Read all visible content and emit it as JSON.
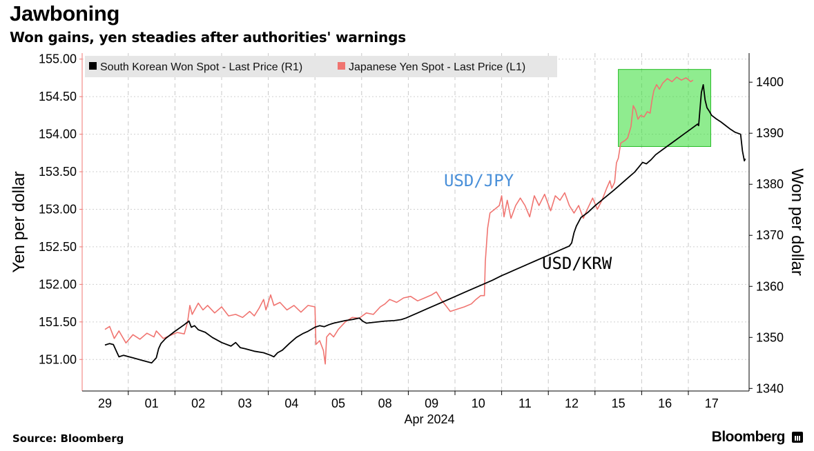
{
  "header": {
    "title": "Jawboning",
    "subtitle": "Won gains, yen steadies after authorities' warnings"
  },
  "footer": {
    "source": "Source: Bloomberg",
    "brand": "Bloomberg"
  },
  "chart_data": {
    "type": "line",
    "title": "Jawboning",
    "subtitle": "Won gains, yen steadies after authorities' warnings",
    "xlabel": "Apr 2024",
    "x_ticks": [
      "29",
      "01",
      "02",
      "03",
      "04",
      "05",
      "08",
      "09",
      "10",
      "11",
      "12",
      "15",
      "16",
      "17"
    ],
    "y_left": {
      "label": "Yen per dollar",
      "range": [
        150.58,
        155.08
      ],
      "ticks": [
        "151.00",
        "151.50",
        "152.00",
        "152.50",
        "153.00",
        "153.50",
        "154.00",
        "154.50",
        "155.00"
      ]
    },
    "y_right": {
      "label": "Won per dollar",
      "range": [
        1339.5,
        1405.7
      ],
      "ticks": [
        "1340",
        "1350",
        "1360",
        "1370",
        "1380",
        "1390",
        "1400"
      ]
    },
    "legend": [
      {
        "label": "South Korean Won Spot - Last Price (R1)",
        "color": "#000000"
      },
      {
        "label": "Japanese Yen Spot - Last Price (L1)",
        "color": "#f07470"
      }
    ],
    "annotations": [
      {
        "text": "USD/JPY",
        "color": "#4a90d9"
      },
      {
        "text": "USD/KRW",
        "color": "#000000"
      }
    ],
    "highlight": {
      "x_range": [
        15.0,
        16.98
      ],
      "y_range_won": [
        1387.4,
        1402.5
      ],
      "color": "#33dd33"
    },
    "series": [
      {
        "name": "Japanese Yen Spot - Last Price (L1)",
        "axis": "left",
        "color": "#f07470",
        "points": [
          [
            0,
            151.4
          ],
          [
            0.1,
            151.44
          ],
          [
            0.2,
            151.28
          ],
          [
            0.3,
            151.38
          ],
          [
            0.45,
            151.22
          ],
          [
            0.6,
            151.33
          ],
          [
            0.75,
            151.27
          ],
          [
            0.9,
            151.35
          ],
          [
            1.05,
            151.3
          ],
          [
            1.1,
            151.38
          ],
          [
            1.25,
            151.28
          ],
          [
            1.4,
            151.32
          ],
          [
            1.55,
            151.36
          ],
          [
            1.7,
            151.34
          ],
          [
            1.77,
            151.5
          ],
          [
            1.82,
            151.72
          ],
          [
            1.87,
            151.6
          ],
          [
            2.0,
            151.75
          ],
          [
            2.1,
            151.66
          ],
          [
            2.2,
            151.72
          ],
          [
            2.35,
            151.62
          ],
          [
            2.5,
            151.7
          ],
          [
            2.65,
            151.58
          ],
          [
            2.8,
            151.6
          ],
          [
            2.95,
            151.56
          ],
          [
            3.1,
            151.64
          ],
          [
            3.2,
            151.58
          ],
          [
            3.3,
            151.68
          ],
          [
            3.4,
            151.8
          ],
          [
            3.45,
            151.66
          ],
          [
            3.55,
            151.86
          ],
          [
            3.62,
            151.72
          ],
          [
            3.75,
            151.76
          ],
          [
            3.9,
            151.66
          ],
          [
            4.05,
            151.72
          ],
          [
            4.2,
            151.63
          ],
          [
            4.35,
            151.72
          ],
          [
            4.5,
            151.7
          ],
          [
            4.52,
            151.2
          ],
          [
            4.6,
            151.25
          ],
          [
            4.68,
            151.12
          ],
          [
            4.72,
            150.94
          ],
          [
            4.75,
            151.3
          ],
          [
            4.82,
            151.35
          ],
          [
            4.9,
            151.3
          ],
          [
            5.0,
            151.4
          ],
          [
            5.15,
            151.5
          ],
          [
            5.3,
            151.56
          ],
          [
            5.45,
            151.55
          ],
          [
            5.6,
            151.62
          ],
          [
            5.75,
            151.6
          ],
          [
            5.9,
            151.7
          ],
          [
            6.0,
            151.74
          ],
          [
            6.1,
            151.8
          ],
          [
            6.25,
            151.76
          ],
          [
            6.4,
            151.82
          ],
          [
            6.55,
            151.84
          ],
          [
            6.7,
            151.78
          ],
          [
            6.85,
            151.82
          ],
          [
            7.0,
            151.86
          ],
          [
            7.1,
            151.9
          ],
          [
            7.2,
            151.8
          ],
          [
            7.3,
            151.72
          ],
          [
            7.4,
            151.64
          ],
          [
            7.55,
            151.67
          ],
          [
            7.7,
            151.7
          ],
          [
            7.85,
            151.74
          ],
          [
            7.95,
            151.8
          ],
          [
            8.05,
            151.85
          ],
          [
            8.13,
            151.85
          ],
          [
            8.15,
            152.3
          ],
          [
            8.2,
            152.75
          ],
          [
            8.25,
            152.95
          ],
          [
            8.35,
            153.0
          ],
          [
            8.45,
            153.05
          ],
          [
            8.5,
            153.18
          ],
          [
            8.55,
            152.9
          ],
          [
            8.62,
            153.12
          ],
          [
            8.7,
            152.88
          ],
          [
            8.8,
            153.05
          ],
          [
            8.9,
            153.15
          ],
          [
            9.0,
            153.05
          ],
          [
            9.1,
            152.9
          ],
          [
            9.2,
            153.18
          ],
          [
            9.3,
            153.05
          ],
          [
            9.42,
            153.2
          ],
          [
            9.55,
            152.98
          ],
          [
            9.65,
            153.18
          ],
          [
            9.75,
            153.12
          ],
          [
            9.85,
            153.22
          ],
          [
            9.95,
            153.05
          ],
          [
            10.05,
            152.95
          ],
          [
            10.15,
            153.05
          ],
          [
            10.25,
            152.88
          ],
          [
            10.35,
            153.02
          ],
          [
            10.45,
            153.15
          ],
          [
            10.55,
            153.0
          ],
          [
            10.65,
            153.12
          ],
          [
            10.75,
            153.28
          ],
          [
            10.82,
            153.38
          ],
          [
            10.86,
            153.28
          ],
          [
            10.92,
            153.36
          ],
          [
            10.96,
            153.62
          ],
          [
            11.0,
            153.68
          ],
          [
            11.05,
            153.88
          ],
          [
            11.1,
            153.9
          ],
          [
            11.15,
            153.92
          ],
          [
            11.2,
            153.95
          ],
          [
            11.27,
            154.1
          ],
          [
            11.32,
            154.38
          ],
          [
            11.37,
            154.32
          ],
          [
            11.42,
            154.2
          ],
          [
            11.48,
            154.25
          ],
          [
            11.55,
            154.23
          ],
          [
            11.62,
            154.3
          ],
          [
            11.68,
            154.28
          ],
          [
            11.72,
            154.45
          ],
          [
            11.76,
            154.58
          ],
          [
            11.82,
            154.66
          ],
          [
            11.88,
            154.6
          ],
          [
            11.95,
            154.68
          ],
          [
            12.05,
            154.74
          ],
          [
            12.15,
            154.7
          ],
          [
            12.25,
            154.76
          ],
          [
            12.35,
            154.72
          ],
          [
            12.45,
            154.75
          ],
          [
            12.55,
            154.7
          ],
          [
            12.6,
            154.72
          ]
        ]
      },
      {
        "name": "South Korean Won Spot - Last Price (R1)",
        "axis": "right",
        "color": "#000000",
        "points": [
          [
            0,
            1348.5
          ],
          [
            0.1,
            1348.8
          ],
          [
            0.18,
            1348.6
          ],
          [
            0.25,
            1347.2
          ],
          [
            0.3,
            1346.2
          ],
          [
            0.4,
            1346.5
          ],
          [
            0.6,
            1346.0
          ],
          [
            0.8,
            1345.5
          ],
          [
            1.0,
            1345.0
          ],
          [
            1.1,
            1346.0
          ],
          [
            1.15,
            1347.8
          ],
          [
            1.2,
            1348.8
          ],
          [
            1.3,
            1349.8
          ],
          [
            1.5,
            1351.2
          ],
          [
            1.7,
            1352.5
          ],
          [
            1.8,
            1353.2
          ],
          [
            1.85,
            1352.0
          ],
          [
            1.92,
            1352.3
          ],
          [
            2.0,
            1351.5
          ],
          [
            2.15,
            1351.0
          ],
          [
            2.3,
            1350.0
          ],
          [
            2.5,
            1349.0
          ],
          [
            2.7,
            1348.3
          ],
          [
            2.8,
            1349.0
          ],
          [
            2.9,
            1348.0
          ],
          [
            3.0,
            1347.8
          ],
          [
            3.2,
            1347.3
          ],
          [
            3.4,
            1347.0
          ],
          [
            3.55,
            1346.5
          ],
          [
            3.62,
            1346.2
          ],
          [
            3.7,
            1347.0
          ],
          [
            3.8,
            1347.5
          ],
          [
            3.95,
            1348.8
          ],
          [
            4.1,
            1350.0
          ],
          [
            4.25,
            1350.8
          ],
          [
            4.35,
            1351.2
          ],
          [
            4.5,
            1352.0
          ],
          [
            4.6,
            1352.3
          ],
          [
            4.7,
            1352.1
          ],
          [
            4.8,
            1352.5
          ],
          [
            4.9,
            1352.8
          ],
          [
            5.0,
            1353.0
          ],
          [
            5.15,
            1353.3
          ],
          [
            5.3,
            1353.5
          ],
          [
            5.45,
            1353.8
          ],
          [
            5.52,
            1353.2
          ],
          [
            5.6,
            1352.8
          ],
          [
            5.8,
            1353.0
          ],
          [
            6.0,
            1353.2
          ],
          [
            6.2,
            1353.3
          ],
          [
            6.35,
            1353.5
          ],
          [
            6.45,
            1353.8
          ],
          [
            6.55,
            1354.2
          ],
          [
            6.7,
            1354.8
          ],
          [
            6.9,
            1355.6
          ],
          [
            7.1,
            1356.4
          ],
          [
            7.3,
            1357.2
          ],
          [
            7.5,
            1358.0
          ],
          [
            7.7,
            1358.8
          ],
          [
            7.9,
            1359.6
          ],
          [
            8.1,
            1360.4
          ],
          [
            8.3,
            1361.2
          ],
          [
            8.5,
            1362.1
          ],
          [
            8.6,
            1362.5
          ],
          [
            8.8,
            1363.3
          ],
          [
            9.0,
            1364.1
          ],
          [
            9.2,
            1364.9
          ],
          [
            9.4,
            1365.7
          ],
          [
            9.6,
            1366.5
          ],
          [
            9.8,
            1367.3
          ],
          [
            9.95,
            1367.9
          ],
          [
            10.0,
            1368.5
          ],
          [
            10.05,
            1370.5
          ],
          [
            10.1,
            1371.8
          ],
          [
            10.2,
            1373.5
          ],
          [
            10.35,
            1374.5
          ],
          [
            10.5,
            1375.8
          ],
          [
            10.7,
            1377.3
          ],
          [
            10.9,
            1378.8
          ],
          [
            11.05,
            1380.0
          ],
          [
            11.2,
            1381.2
          ],
          [
            11.35,
            1382.4
          ],
          [
            11.45,
            1383.5
          ],
          [
            11.52,
            1384.3
          ],
          [
            11.6,
            1384.0
          ],
          [
            11.7,
            1384.8
          ],
          [
            11.8,
            1385.8
          ],
          [
            11.95,
            1386.8
          ],
          [
            12.1,
            1387.8
          ],
          [
            12.25,
            1388.8
          ],
          [
            12.4,
            1389.8
          ],
          [
            12.55,
            1390.8
          ],
          [
            12.7,
            1391.8
          ],
          [
            12.72,
            1391.5
          ],
          [
            12.78,
            1398.0
          ],
          [
            12.82,
            1399.5
          ],
          [
            12.86,
            1396.5
          ],
          [
            12.9,
            1395.0
          ],
          [
            12.95,
            1394.3
          ],
          [
            13.0,
            1393.5
          ],
          [
            13.1,
            1392.8
          ],
          [
            13.2,
            1392.2
          ],
          [
            13.3,
            1391.5
          ],
          [
            13.4,
            1390.8
          ],
          [
            13.5,
            1390.2
          ],
          [
            13.62,
            1389.8
          ],
          [
            13.66,
            1386.5
          ],
          [
            13.7,
            1384.6
          ],
          [
            13.72,
            1385.0
          ]
        ]
      }
    ]
  }
}
